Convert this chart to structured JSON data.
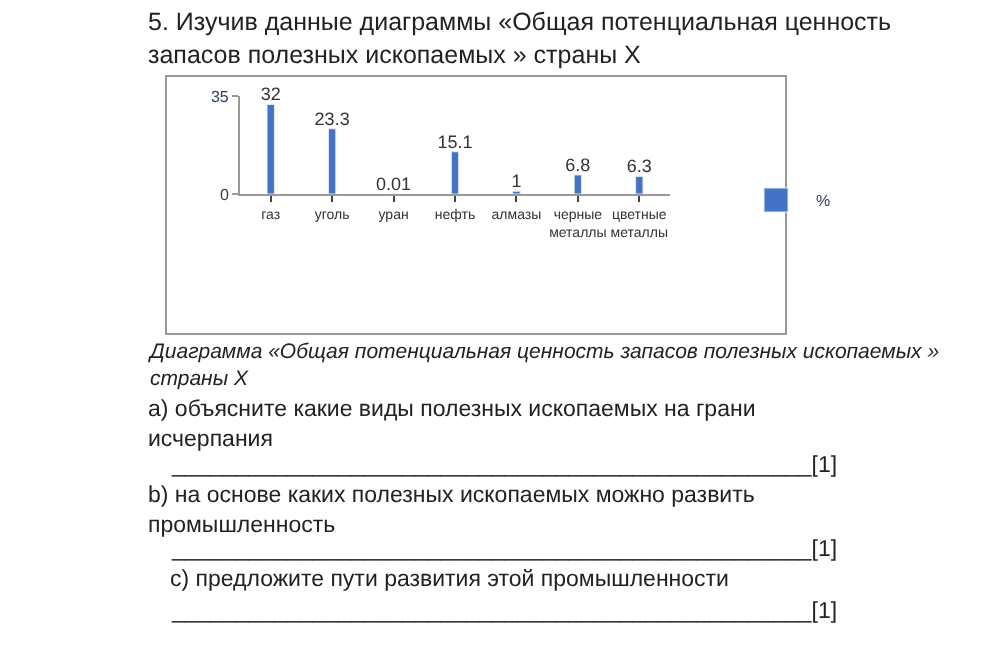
{
  "chart_data": {
    "type": "bar",
    "title": "5. Изучив данные диаграммы «Общая потенциальная ценность запасов полезных ископаемых » страны X",
    "categories": [
      "газ",
      "уголь",
      "уран",
      "нефть",
      "алмазы",
      "черные металлы",
      "цветные металлы"
    ],
    "series": [
      {
        "name": "%",
        "color": "#4472c4",
        "values": [
          32,
          23.3,
          0.01,
          15.1,
          1,
          6.8,
          6.3
        ]
      }
    ],
    "ylim": [
      0,
      35
    ],
    "yticks": [
      0,
      35
    ],
    "data_labels": true,
    "legend": "right",
    "annotations": [
      "Диаграмма «Общая потенциальная ценность запасов полезных ископаемых » страны X",
      "а) объясните какие виды полезных ископаемых на грани исчерпания",
      "__________________________________________________[1]",
      "b) на основе каких полезных ископаемых можно развить промышленность",
      "__________________________________________________[1]",
      "c) предложите пути развития этой промышленности",
      "__________________________________________________[1]"
    ]
  }
}
